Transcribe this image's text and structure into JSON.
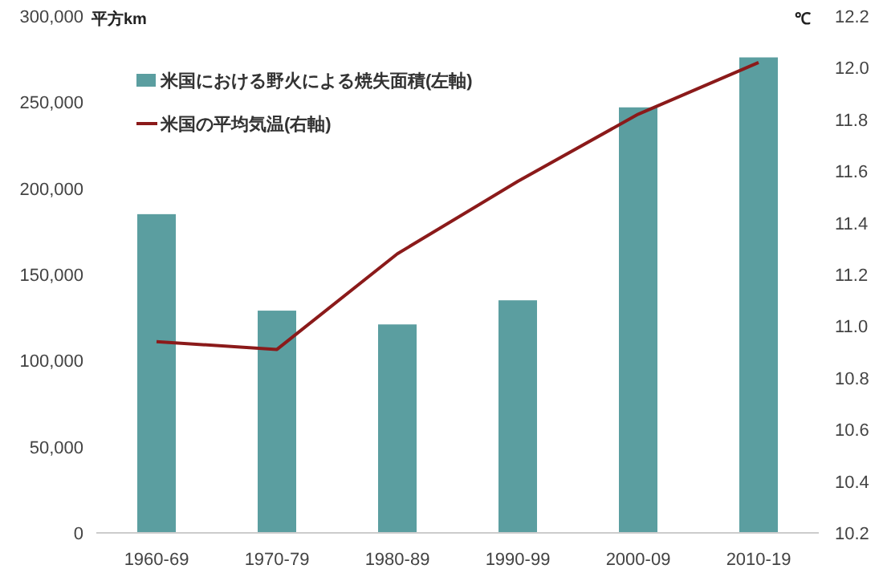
{
  "chart_data": {
    "type": "bar",
    "ylabel": "平方km",
    "y2label": "℃",
    "categories": [
      "1960-69",
      "1970-79",
      "1980-89",
      "1990-99",
      "2000-09",
      "2010-19"
    ],
    "series": [
      {
        "name": "米国における野火による焼失面積(左軸)",
        "color": "#5b9ea0",
        "values": [
          185000,
          129000,
          121000,
          135000,
          247000,
          276000
        ]
      },
      {
        "name": "米国の平均気温(右軸)",
        "type": "line",
        "axis": "y2",
        "color": "#8b1a1a",
        "values": [
          10.94,
          10.91,
          11.28,
          11.56,
          11.82,
          12.02
        ]
      }
    ],
    "ylim": [
      0,
      300000
    ],
    "yticks": [
      {
        "value": 0,
        "label": "0"
      },
      {
        "value": 50000,
        "label": "50,000"
      },
      {
        "value": 100000,
        "label": "100,000"
      },
      {
        "value": 150000,
        "label": "150,000"
      },
      {
        "value": 200000,
        "label": "200,000"
      },
      {
        "value": 250000,
        "label": "250,000"
      },
      {
        "value": 300000,
        "label": "300,000"
      }
    ],
    "y2lim": [
      10.2,
      12.2
    ],
    "y2ticks": [
      {
        "value": 10.2,
        "label": "10.2"
      },
      {
        "value": 10.4,
        "label": "10.4"
      },
      {
        "value": 10.6,
        "label": "10.6"
      },
      {
        "value": 10.8,
        "label": "10.8"
      },
      {
        "value": 11.0,
        "label": "11.0"
      },
      {
        "value": 11.2,
        "label": "11.2"
      },
      {
        "value": 11.4,
        "label": "11.4"
      },
      {
        "value": 11.6,
        "label": "11.6"
      },
      {
        "value": 11.8,
        "label": "11.8"
      },
      {
        "value": 12.0,
        "label": "12.0"
      },
      {
        "value": 12.2,
        "label": "12.2"
      }
    ],
    "legend": "top left",
    "grid": false
  }
}
